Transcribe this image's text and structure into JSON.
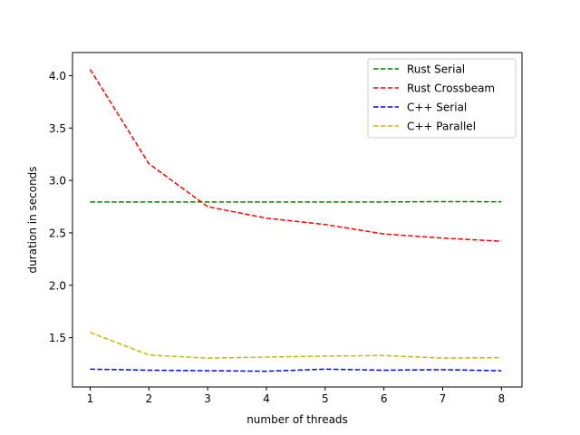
{
  "chart_data": {
    "type": "line",
    "title": "",
    "xlabel": "number of threads",
    "ylabel": "duration in seconds",
    "x": [
      1,
      2,
      3,
      4,
      5,
      6,
      7,
      8
    ],
    "xlim": [
      0.7,
      8.35
    ],
    "ylim": [
      1.03,
      4.22
    ],
    "x_ticks": [
      1,
      2,
      3,
      4,
      5,
      6,
      7,
      8
    ],
    "y_ticks": [
      1.5,
      2.0,
      2.5,
      3.0,
      3.5,
      4.0
    ],
    "x_tick_labels": [
      "1",
      "2",
      "3",
      "4",
      "5",
      "6",
      "7",
      "8"
    ],
    "y_tick_labels": [
      "1.5",
      "2.0",
      "2.5",
      "3.0",
      "3.5",
      "4.0"
    ],
    "grid": false,
    "legend_position": "top-right",
    "line_style": "dashed",
    "series": [
      {
        "name": "Rust Serial",
        "color": "#008000",
        "values": [
          2.795,
          2.795,
          2.795,
          2.795,
          2.795,
          2.795,
          2.798,
          2.797
        ]
      },
      {
        "name": "Rust Crossbeam",
        "color": "#ff0000",
        "values": [
          4.06,
          3.16,
          2.75,
          2.64,
          2.58,
          2.49,
          2.45,
          2.42
        ]
      },
      {
        "name": "C++ Serial",
        "color": "#0000ff",
        "values": [
          1.2,
          1.19,
          1.185,
          1.18,
          1.2,
          1.19,
          1.195,
          1.185
        ]
      },
      {
        "name": "C++ Parallel",
        "color": "#bfbf00",
        "values": [
          1.55,
          1.335,
          1.305,
          1.315,
          1.325,
          1.33,
          1.305,
          1.31
        ]
      }
    ]
  }
}
